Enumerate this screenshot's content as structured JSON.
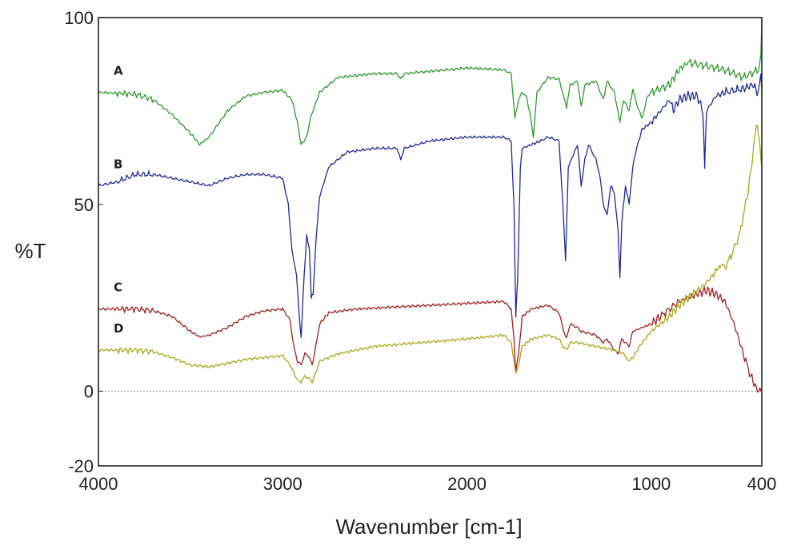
{
  "chart_data": {
    "type": "line",
    "title": "",
    "xlabel": "Wavenumber [cm-1]",
    "ylabel": "%T",
    "xlim": [
      4000,
      400
    ],
    "ylim": [
      -20,
      100
    ],
    "x_ticks": [
      4000,
      3000,
      2000,
      1000,
      400
    ],
    "y_ticks": [
      100,
      50,
      0,
      -20
    ],
    "grid": false,
    "zero_line": true,
    "legend": "none",
    "series": [
      {
        "name": "A",
        "color": "#2e9a2e",
        "points": [
          [
            4000,
            80
          ],
          [
            3800,
            79.5
          ],
          [
            3700,
            78
          ],
          [
            3600,
            74
          ],
          [
            3500,
            69
          ],
          [
            3450,
            66
          ],
          [
            3400,
            68
          ],
          [
            3300,
            75
          ],
          [
            3200,
            79
          ],
          [
            3100,
            80
          ],
          [
            3000,
            80.5
          ],
          [
            2950,
            78
          ],
          [
            2920,
            72
          ],
          [
            2900,
            66
          ],
          [
            2870,
            68
          ],
          [
            2850,
            73
          ],
          [
            2800,
            80
          ],
          [
            2700,
            84
          ],
          [
            2500,
            85
          ],
          [
            2380,
            85
          ],
          [
            2360,
            83.5
          ],
          [
            2340,
            85
          ],
          [
            2000,
            86.5
          ],
          [
            1800,
            86
          ],
          [
            1760,
            85
          ],
          [
            1740,
            73
          ],
          [
            1720,
            78
          ],
          [
            1700,
            80
          ],
          [
            1680,
            79
          ],
          [
            1660,
            75
          ],
          [
            1640,
            68
          ],
          [
            1620,
            80
          ],
          [
            1560,
            84
          ],
          [
            1500,
            83.5
          ],
          [
            1460,
            76
          ],
          [
            1440,
            82
          ],
          [
            1400,
            83
          ],
          [
            1380,
            76
          ],
          [
            1360,
            82
          ],
          [
            1300,
            83
          ],
          [
            1260,
            78
          ],
          [
            1240,
            83
          ],
          [
            1200,
            80
          ],
          [
            1170,
            72
          ],
          [
            1150,
            78
          ],
          [
            1120,
            75
          ],
          [
            1100,
            81
          ],
          [
            1080,
            77
          ],
          [
            1050,
            73
          ],
          [
            1020,
            79
          ],
          [
            1000,
            80
          ],
          [
            900,
            82
          ],
          [
            850,
            86
          ],
          [
            800,
            88
          ],
          [
            700,
            87
          ],
          [
            600,
            86
          ],
          [
            500,
            84
          ],
          [
            420,
            86
          ],
          [
            405,
            90
          ],
          [
            400,
            100
          ]
        ]
      },
      {
        "name": "B",
        "color": "#1f2a9a",
        "points": [
          [
            4000,
            55
          ],
          [
            3900,
            56
          ],
          [
            3800,
            58
          ],
          [
            3700,
            58
          ],
          [
            3600,
            57
          ],
          [
            3500,
            56
          ],
          [
            3400,
            55
          ],
          [
            3300,
            57
          ],
          [
            3200,
            58
          ],
          [
            3100,
            58
          ],
          [
            3000,
            57
          ],
          [
            2970,
            50
          ],
          [
            2950,
            38
          ],
          [
            2940,
            35
          ],
          [
            2925,
            31
          ],
          [
            2910,
            20
          ],
          [
            2900,
            14
          ],
          [
            2890,
            25
          ],
          [
            2870,
            42
          ],
          [
            2855,
            38
          ],
          [
            2845,
            25
          ],
          [
            2835,
            26
          ],
          [
            2820,
            40
          ],
          [
            2800,
            52
          ],
          [
            2750,
            60
          ],
          [
            2650,
            64
          ],
          [
            2500,
            65
          ],
          [
            2380,
            65
          ],
          [
            2360,
            62
          ],
          [
            2340,
            65
          ],
          [
            2200,
            67
          ],
          [
            2000,
            68
          ],
          [
            1800,
            68
          ],
          [
            1760,
            67
          ],
          [
            1745,
            50
          ],
          [
            1735,
            20
          ],
          [
            1725,
            30
          ],
          [
            1710,
            60
          ],
          [
            1700,
            65
          ],
          [
            1650,
            66
          ],
          [
            1600,
            67
          ],
          [
            1560,
            68
          ],
          [
            1500,
            67
          ],
          [
            1480,
            50
          ],
          [
            1465,
            35
          ],
          [
            1450,
            60
          ],
          [
            1400,
            66
          ],
          [
            1380,
            55
          ],
          [
            1360,
            62
          ],
          [
            1340,
            66
          ],
          [
            1300,
            62
          ],
          [
            1280,
            58
          ],
          [
            1260,
            50
          ],
          [
            1240,
            47
          ],
          [
            1220,
            55
          ],
          [
            1200,
            53
          ],
          [
            1180,
            43
          ],
          [
            1170,
            30
          ],
          [
            1160,
            45
          ],
          [
            1140,
            55
          ],
          [
            1120,
            50
          ],
          [
            1100,
            60
          ],
          [
            1080,
            65
          ],
          [
            1050,
            70
          ],
          [
            1000,
            72
          ],
          [
            950,
            75
          ],
          [
            900,
            78
          ],
          [
            880,
            75
          ],
          [
            850,
            78
          ],
          [
            800,
            79
          ],
          [
            750,
            79
          ],
          [
            720,
            75
          ],
          [
            710,
            60
          ],
          [
            700,
            75
          ],
          [
            650,
            79
          ],
          [
            600,
            80
          ],
          [
            500,
            81
          ],
          [
            450,
            82
          ],
          [
            420,
            80
          ],
          [
            405,
            84
          ],
          [
            400,
            80
          ]
        ]
      },
      {
        "name": "C",
        "color": "#a01f1f",
        "points": [
          [
            4000,
            22
          ],
          [
            3800,
            22
          ],
          [
            3700,
            21.5
          ],
          [
            3600,
            20
          ],
          [
            3500,
            16
          ],
          [
            3450,
            14.5
          ],
          [
            3400,
            15
          ],
          [
            3300,
            17
          ],
          [
            3200,
            20
          ],
          [
            3100,
            21.5
          ],
          [
            3000,
            22
          ],
          [
            2960,
            19
          ],
          [
            2940,
            12
          ],
          [
            2920,
            8
          ],
          [
            2900,
            7
          ],
          [
            2880,
            10
          ],
          [
            2860,
            9.5
          ],
          [
            2840,
            7
          ],
          [
            2820,
            12
          ],
          [
            2800,
            18
          ],
          [
            2750,
            21
          ],
          [
            2600,
            22
          ],
          [
            2400,
            22.5
          ],
          [
            2000,
            23.5
          ],
          [
            1800,
            24
          ],
          [
            1760,
            22
          ],
          [
            1745,
            14
          ],
          [
            1735,
            5
          ],
          [
            1720,
            10
          ],
          [
            1700,
            20
          ],
          [
            1650,
            22
          ],
          [
            1560,
            23
          ],
          [
            1500,
            21
          ],
          [
            1480,
            17
          ],
          [
            1460,
            14
          ],
          [
            1440,
            18
          ],
          [
            1400,
            17
          ],
          [
            1380,
            16
          ],
          [
            1300,
            15
          ],
          [
            1260,
            13
          ],
          [
            1240,
            14
          ],
          [
            1200,
            11
          ],
          [
            1180,
            10
          ],
          [
            1160,
            14
          ],
          [
            1120,
            12
          ],
          [
            1100,
            16
          ],
          [
            1050,
            17
          ],
          [
            1000,
            18
          ],
          [
            950,
            20
          ],
          [
            850,
            24
          ],
          [
            800,
            25
          ],
          [
            750,
            26
          ],
          [
            700,
            27
          ],
          [
            650,
            26
          ],
          [
            600,
            24
          ],
          [
            550,
            18
          ],
          [
            500,
            10
          ],
          [
            460,
            4
          ],
          [
            430,
            1
          ],
          [
            410,
            0
          ],
          [
            400,
            0
          ]
        ]
      },
      {
        "name": "D",
        "color": "#a8a81a",
        "points": [
          [
            4000,
            11
          ],
          [
            3800,
            11
          ],
          [
            3700,
            10.5
          ],
          [
            3600,
            9
          ],
          [
            3500,
            7
          ],
          [
            3400,
            6.5
          ],
          [
            3300,
            7.5
          ],
          [
            3200,
            8.5
          ],
          [
            3100,
            9
          ],
          [
            3000,
            9.5
          ],
          [
            2960,
            7
          ],
          [
            2940,
            5
          ],
          [
            2920,
            3
          ],
          [
            2900,
            2.5
          ],
          [
            2880,
            4
          ],
          [
            2860,
            3.5
          ],
          [
            2840,
            2.5
          ],
          [
            2820,
            5
          ],
          [
            2800,
            8
          ],
          [
            2700,
            10
          ],
          [
            2500,
            12
          ],
          [
            2000,
            14
          ],
          [
            1800,
            15
          ],
          [
            1760,
            13
          ],
          [
            1745,
            8
          ],
          [
            1735,
            4.5
          ],
          [
            1720,
            7
          ],
          [
            1700,
            12
          ],
          [
            1650,
            14
          ],
          [
            1560,
            15
          ],
          [
            1500,
            14
          ],
          [
            1480,
            12
          ],
          [
            1460,
            11
          ],
          [
            1440,
            13
          ],
          [
            1400,
            13
          ],
          [
            1300,
            12
          ],
          [
            1200,
            11
          ],
          [
            1150,
            10
          ],
          [
            1120,
            8
          ],
          [
            1100,
            9
          ],
          [
            1050,
            13
          ],
          [
            1000,
            16
          ],
          [
            950,
            18
          ],
          [
            900,
            20
          ],
          [
            850,
            23
          ],
          [
            800,
            25
          ],
          [
            750,
            27
          ],
          [
            700,
            29
          ],
          [
            650,
            32
          ],
          [
            620,
            34
          ],
          [
            600,
            33
          ],
          [
            560,
            37
          ],
          [
            520,
            42
          ],
          [
            480,
            52
          ],
          [
            450,
            62
          ],
          [
            430,
            72
          ],
          [
            420,
            70
          ],
          [
            410,
            65
          ],
          [
            400,
            60
          ]
        ]
      }
    ]
  }
}
